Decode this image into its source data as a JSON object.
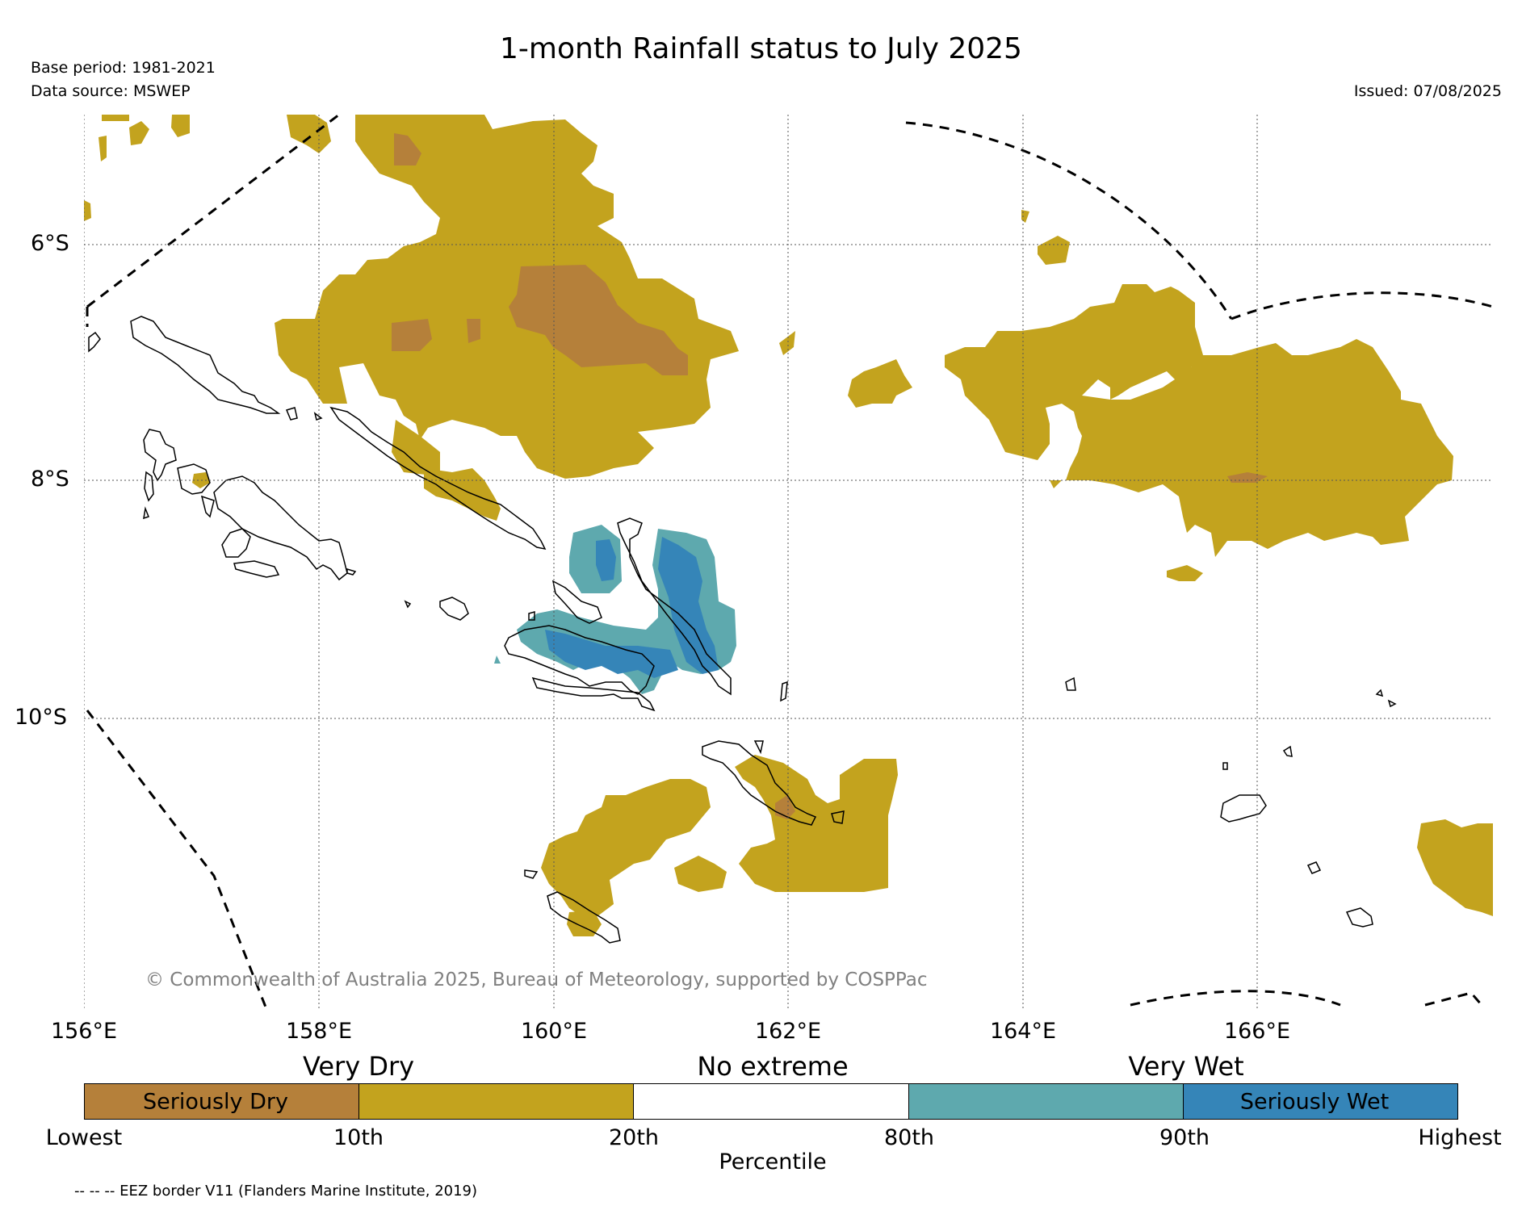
{
  "header": {
    "title": "1-month Rainfall status to July 2025",
    "base_period": "Base period: 1981-2021",
    "data_source": "Data source: MSWEP",
    "issued": "Issued: 07/08/2025"
  },
  "map": {
    "lon_labels": [
      "156°E",
      "158°E",
      "160°E",
      "162°E",
      "164°E",
      "166°E"
    ],
    "lat_labels": [
      "6°S",
      "8°S",
      "10°S"
    ],
    "copyright": "© Commonwealth of Australia 2025, Bureau of Meteorology, supported by COSPPac",
    "colors": {
      "seriously_dry": "#b5803a",
      "very_dry": "#c3a31e",
      "no_extreme": "#ffffff",
      "very_wet": "#5ea9ae",
      "seriously_wet": "#3585b8",
      "copyright_text": "#808080"
    }
  },
  "legend": {
    "categories": [
      "Very Dry",
      "No extreme",
      "Very Wet"
    ],
    "segments": [
      {
        "label": "Seriously Dry",
        "color": "#b5803a"
      },
      {
        "label": "",
        "color": "#c3a31e"
      },
      {
        "label": "",
        "color": "#ffffff"
      },
      {
        "label": "",
        "color": "#5ea9ae"
      },
      {
        "label": "Seriously Wet",
        "color": "#3585b8"
      }
    ],
    "percentiles": [
      "Lowest",
      "10th",
      "20th",
      "80th",
      "90th",
      "Highest"
    ],
    "axis_label": "Percentile"
  },
  "footer": {
    "eez_note": "-- -- -- EEZ border V11 (Flanders Marine Institute, 2019)"
  }
}
